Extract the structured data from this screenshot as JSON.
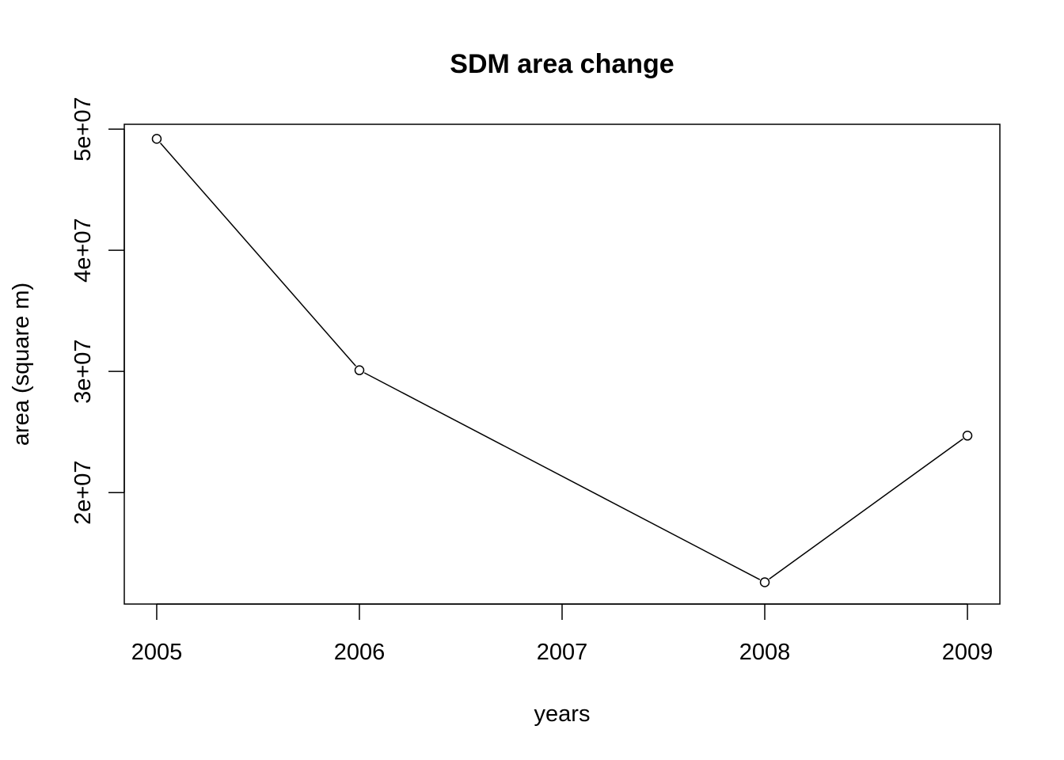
{
  "chart_data": {
    "type": "line",
    "title": "SDM area change",
    "xlabel": "years",
    "ylabel": "area (square m)",
    "x": [
      2005,
      2006,
      2008,
      2009
    ],
    "series": [
      {
        "values": [
          49200000,
          30100000,
          12600000,
          24700000
        ]
      }
    ],
    "xlim": [
      2004.84,
      2009.16
    ],
    "ylim": [
      10800000,
      50400000
    ],
    "x_ticks": [
      2005,
      2006,
      2007,
      2008,
      2009
    ],
    "x_tick_labels": [
      "2005",
      "2006",
      "2007",
      "2008",
      "2009"
    ],
    "y_ticks": [
      20000000,
      30000000,
      40000000,
      50000000
    ],
    "y_tick_labels": [
      "2e+07",
      "3e+07",
      "4e+07",
      "5e+07"
    ],
    "marker": "open-circle",
    "line_color": "#000000",
    "grid": false,
    "legend": false
  }
}
